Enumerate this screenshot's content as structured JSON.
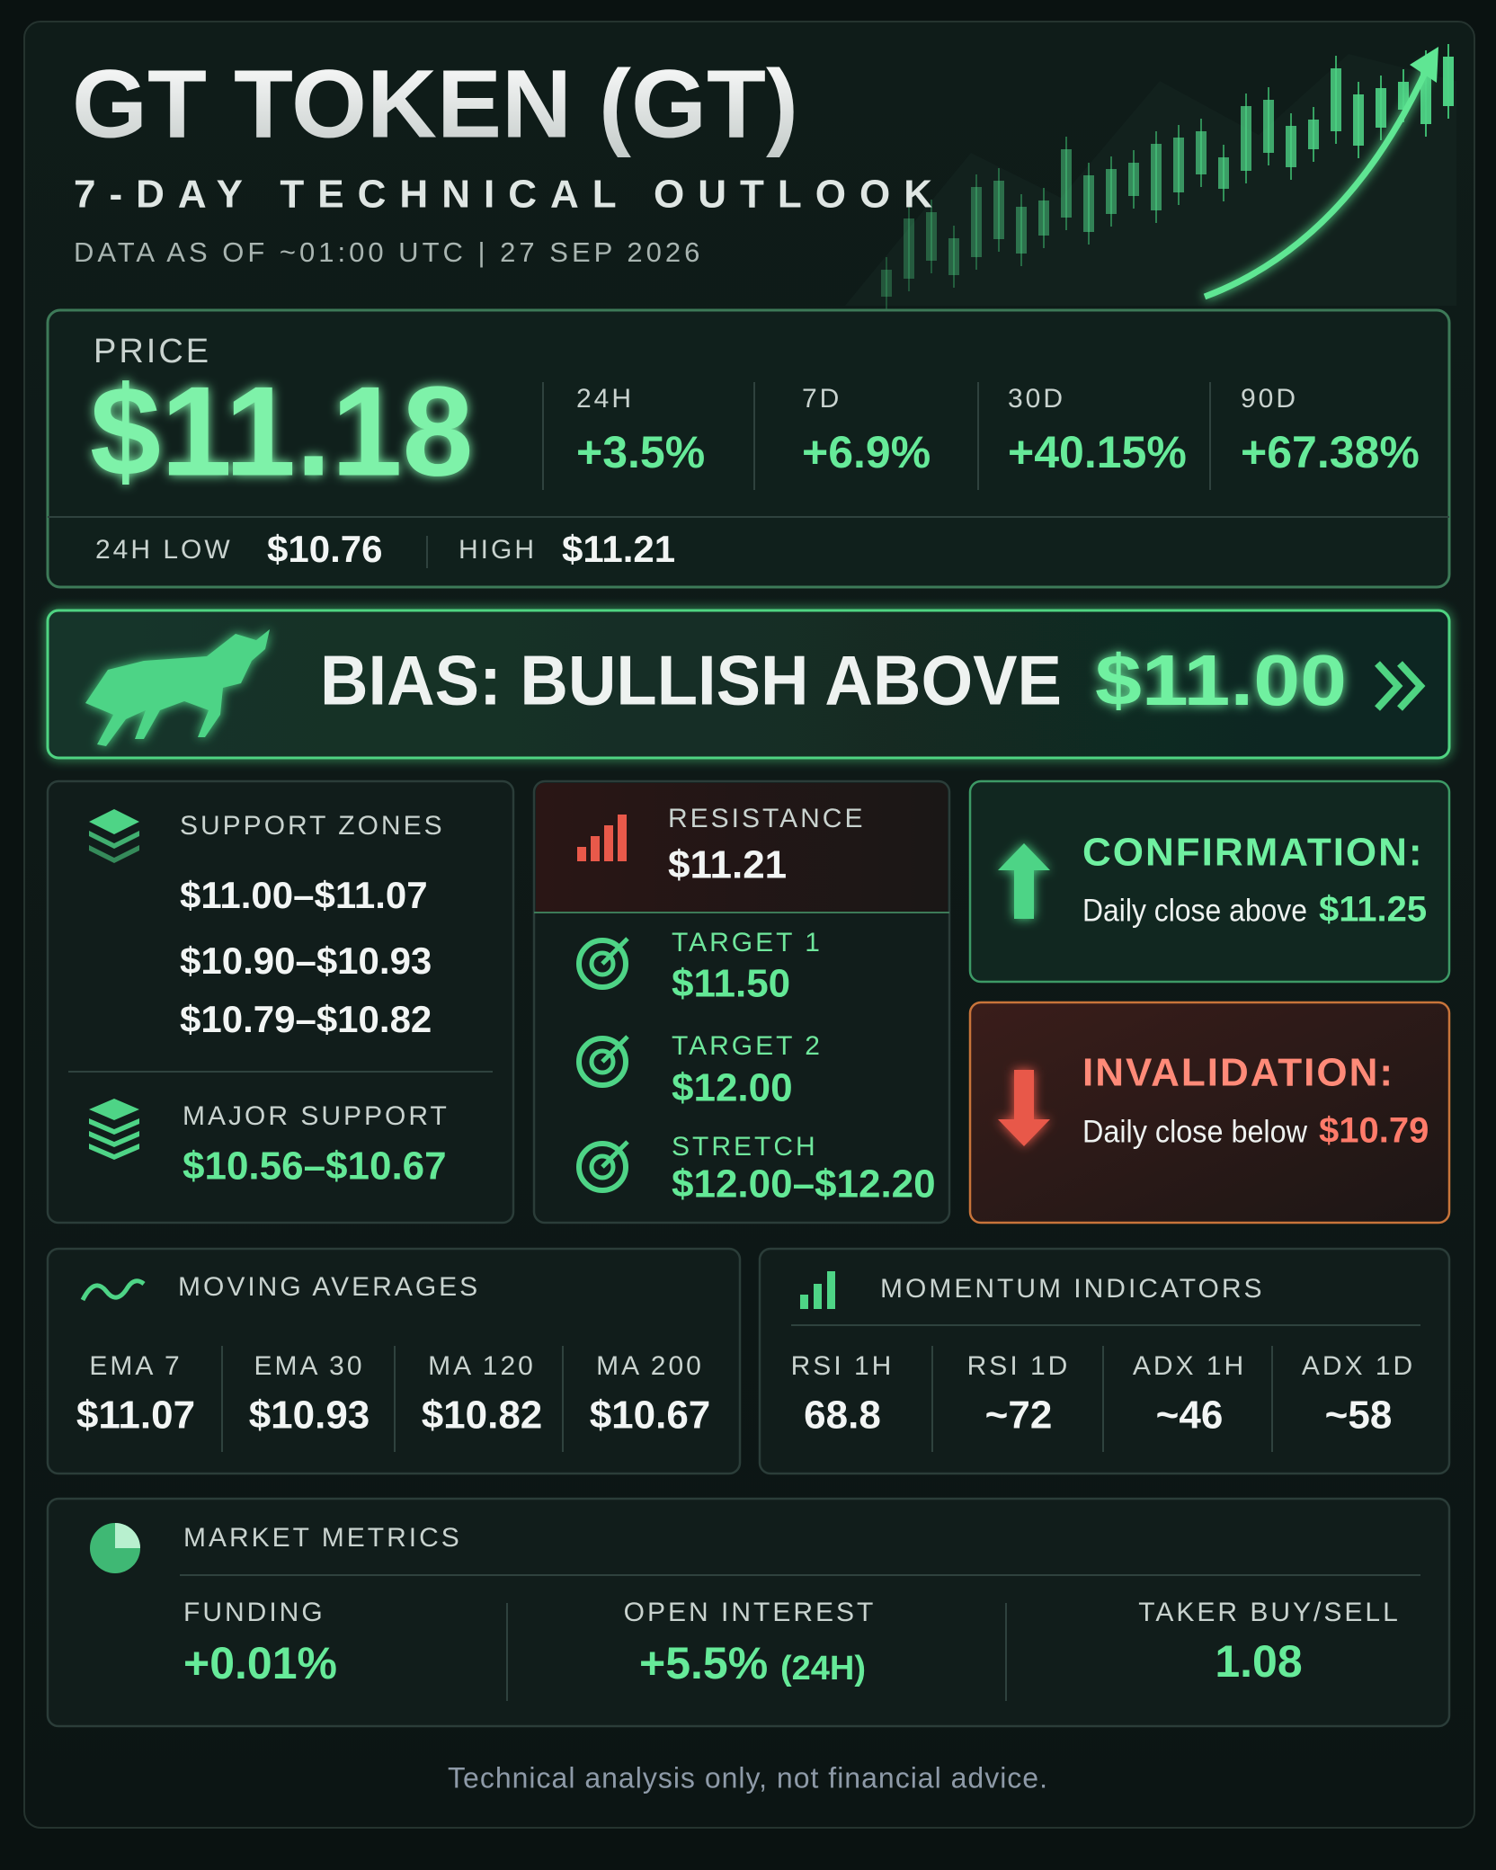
{
  "header": {
    "title": "GT TOKEN (GT)",
    "subtitle": "7-DAY TECHNICAL OUTLOOK",
    "as_of": "DATA AS OF ~01:00 UTC | 27 SEP 2026"
  },
  "price": {
    "label": "PRICE",
    "value": "$11.18",
    "changes": [
      {
        "period": "24H",
        "value": "+3.5%"
      },
      {
        "period": "7D",
        "value": "+6.9%"
      },
      {
        "period": "30D",
        "value": "+40.15%"
      },
      {
        "period": "90D",
        "value": "+67.38%"
      }
    ],
    "low_label": "24H LOW",
    "low": "$10.76",
    "high_label": "HIGH",
    "high": "$11.21"
  },
  "bias": {
    "label": "BIAS: BULLISH ABOVE",
    "level": "$11.00"
  },
  "support": {
    "title": "SUPPORT ZONES",
    "zones": [
      "$11.00–$11.07",
      "$10.90–$10.93",
      "$10.79–$10.82"
    ],
    "major_title": "MAJOR SUPPORT",
    "major": "$10.56–$10.67"
  },
  "resistance": {
    "title": "RESISTANCE",
    "value": "$11.21"
  },
  "targets": [
    {
      "label": "TARGET 1",
      "value": "$11.50"
    },
    {
      "label": "TARGET 2",
      "value": "$12.00"
    },
    {
      "label": "STRETCH",
      "value": "$12.00–$12.20"
    }
  ],
  "confirmation": {
    "title": "CONFIRMATION:",
    "text": "Daily close above",
    "level": "$11.25"
  },
  "invalidation": {
    "title": "INVALIDATION:",
    "text": "Daily close below",
    "level": "$10.79"
  },
  "moving_averages": {
    "title": "MOVING AVERAGES",
    "items": [
      {
        "label": "EMA 7",
        "value": "$11.07"
      },
      {
        "label": "EMA 30",
        "value": "$10.93"
      },
      {
        "label": "MA 120",
        "value": "$10.82"
      },
      {
        "label": "MA 200",
        "value": "$10.67"
      }
    ]
  },
  "momentum": {
    "title": "MOMENTUM INDICATORS",
    "items": [
      {
        "label": "RSI 1H",
        "value": "68.8"
      },
      {
        "label": "RSI 1D",
        "value": "~72"
      },
      {
        "label": "ADX 1H",
        "value": "~46"
      },
      {
        "label": "ADX 1D",
        "value": "~58"
      }
    ]
  },
  "market_metrics": {
    "title": "MARKET METRICS",
    "items": [
      {
        "label": "FUNDING",
        "value": "+0.01%"
      },
      {
        "label": "OPEN INTEREST",
        "value": "+5.5%",
        "note": "(24H)"
      },
      {
        "label": "TAKER BUY/SELL",
        "value": "1.08"
      }
    ]
  },
  "footer": "Technical analysis only, not financial advice."
}
